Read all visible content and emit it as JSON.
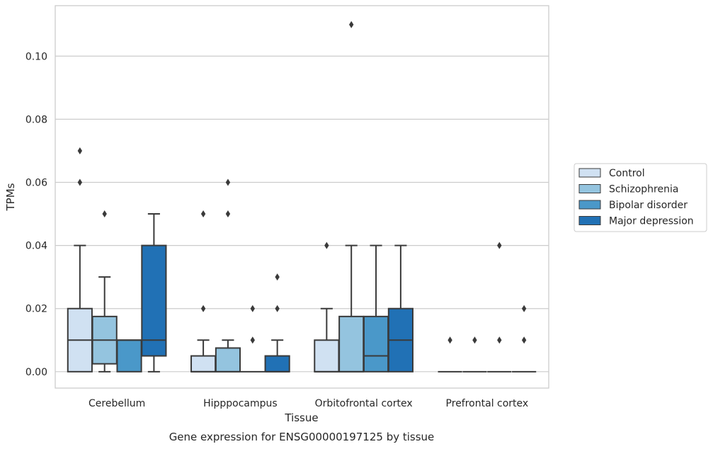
{
  "chart_data": {
    "type": "box",
    "title": "Gene expression for ENSG00000197125 by tissue",
    "xlabel": "Tissue",
    "ylabel": "TPMs",
    "ylim": [
      -0.0052,
      0.116
    ],
    "yticks": [
      "0.00",
      "0.02",
      "0.04",
      "0.06",
      "0.08",
      "0.10"
    ],
    "grid": "horizontal",
    "legend_position": "outside-right",
    "categories": [
      "Cerebellum",
      "Hipppocampus",
      "Orbitofrontal cortex",
      "Prefrontal cortex"
    ],
    "series": [
      {
        "name": "Control",
        "color": "#d0e1f2",
        "boxes": [
          {
            "whislo": 0.0,
            "q1": 0.0,
            "med": 0.01,
            "q3": 0.02,
            "whishi": 0.04,
            "fliers": [
              0.06,
              0.07
            ]
          },
          {
            "whislo": 0.0,
            "q1": 0.0,
            "med": 0.0,
            "q3": 0.005,
            "whishi": 0.01,
            "fliers": [
              0.02,
              0.05
            ]
          },
          {
            "whislo": 0.0,
            "q1": 0.0,
            "med": 0.0,
            "q3": 0.01,
            "whishi": 0.02,
            "fliers": [
              0.04
            ]
          },
          {
            "whislo": 0.0,
            "q1": 0.0,
            "med": 0.0,
            "q3": 0.0,
            "whishi": 0.0,
            "fliers": [
              0.01
            ]
          }
        ]
      },
      {
        "name": "Schizophrenia",
        "color": "#94c4df",
        "boxes": [
          {
            "whislo": 0.0,
            "q1": 0.0025,
            "med": 0.01,
            "q3": 0.0175,
            "whishi": 0.03,
            "fliers": [
              0.05
            ]
          },
          {
            "whislo": 0.0,
            "q1": 0.0,
            "med": 0.0,
            "q3": 0.0075,
            "whishi": 0.01,
            "fliers": [
              0.05,
              0.06
            ]
          },
          {
            "whislo": 0.0,
            "q1": 0.0,
            "med": 0.0,
            "q3": 0.0175,
            "whishi": 0.04,
            "fliers": [
              0.11
            ]
          },
          {
            "whislo": 0.0,
            "q1": 0.0,
            "med": 0.0,
            "q3": 0.0,
            "whishi": 0.0,
            "fliers": [
              0.01
            ]
          }
        ]
      },
      {
        "name": "Bipolar disorder",
        "color": "#4a98c9",
        "boxes": [
          {
            "whislo": 0.0,
            "q1": 0.0,
            "med": 0.01,
            "q3": 0.01,
            "whishi": 0.01,
            "fliers": []
          },
          {
            "whislo": 0.0,
            "q1": 0.0,
            "med": 0.0,
            "q3": 0.0,
            "whishi": 0.0,
            "fliers": [
              0.01,
              0.02
            ]
          },
          {
            "whislo": 0.0,
            "q1": 0.0,
            "med": 0.005,
            "q3": 0.0175,
            "whishi": 0.04,
            "fliers": []
          },
          {
            "whislo": 0.0,
            "q1": 0.0,
            "med": 0.0,
            "q3": 0.0,
            "whishi": 0.0,
            "fliers": [
              0.01,
              0.04
            ]
          }
        ]
      },
      {
        "name": "Major depression",
        "color": "#2171b5",
        "boxes": [
          {
            "whislo": 0.0,
            "q1": 0.005,
            "med": 0.01,
            "q3": 0.04,
            "whishi": 0.05,
            "fliers": []
          },
          {
            "whislo": 0.0,
            "q1": 0.0,
            "med": 0.0,
            "q3": 0.005,
            "whishi": 0.01,
            "fliers": [
              0.02,
              0.03
            ]
          },
          {
            "whislo": 0.0,
            "q1": 0.0,
            "med": 0.01,
            "q3": 0.02,
            "whishi": 0.04,
            "fliers": []
          },
          {
            "whislo": 0.0,
            "q1": 0.0,
            "med": 0.0,
            "q3": 0.0,
            "whishi": 0.0,
            "fliers": [
              0.01,
              0.02
            ]
          }
        ]
      }
    ]
  }
}
